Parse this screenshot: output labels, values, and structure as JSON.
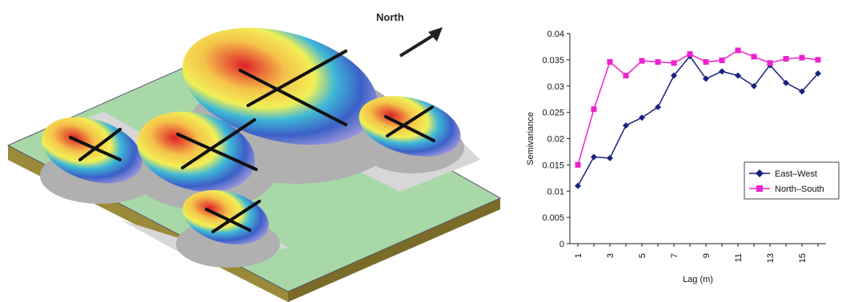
{
  "illustration": {
    "north_label": "North"
  },
  "chart_data": {
    "type": "line",
    "title": "",
    "xlabel": "Lag (m)",
    "ylabel": "Semivariance",
    "ylim": [
      0,
      0.04
    ],
    "yticks": [
      "0",
      "0.005",
      "0.01",
      "0.015",
      "0.02",
      "0.025",
      "0.03",
      "0.035",
      "0.04"
    ],
    "x": [
      1,
      2,
      3,
      4,
      5,
      6,
      7,
      8,
      9,
      10,
      11,
      12,
      13,
      14,
      15,
      16
    ],
    "xtick_labels": [
      "1",
      "3",
      "5",
      "7",
      "9",
      "11",
      "13",
      "15"
    ],
    "legend_position": "right",
    "series": [
      {
        "name": "East–West",
        "color": "#1a237e",
        "marker": "diamond",
        "values": [
          0.011,
          0.0165,
          0.0163,
          0.0225,
          0.024,
          0.026,
          0.032,
          0.0357,
          0.0314,
          0.0328,
          0.032,
          0.03,
          0.034,
          0.0306,
          0.029,
          0.0324
        ]
      },
      {
        "name": "North–South",
        "color": "#ee22cc",
        "marker": "square",
        "values": [
          0.015,
          0.0256,
          0.0346,
          0.032,
          0.0348,
          0.0346,
          0.0344,
          0.0361,
          0.0346,
          0.0349,
          0.0368,
          0.0356,
          0.0344,
          0.0352,
          0.0354,
          0.035
        ]
      }
    ]
  }
}
